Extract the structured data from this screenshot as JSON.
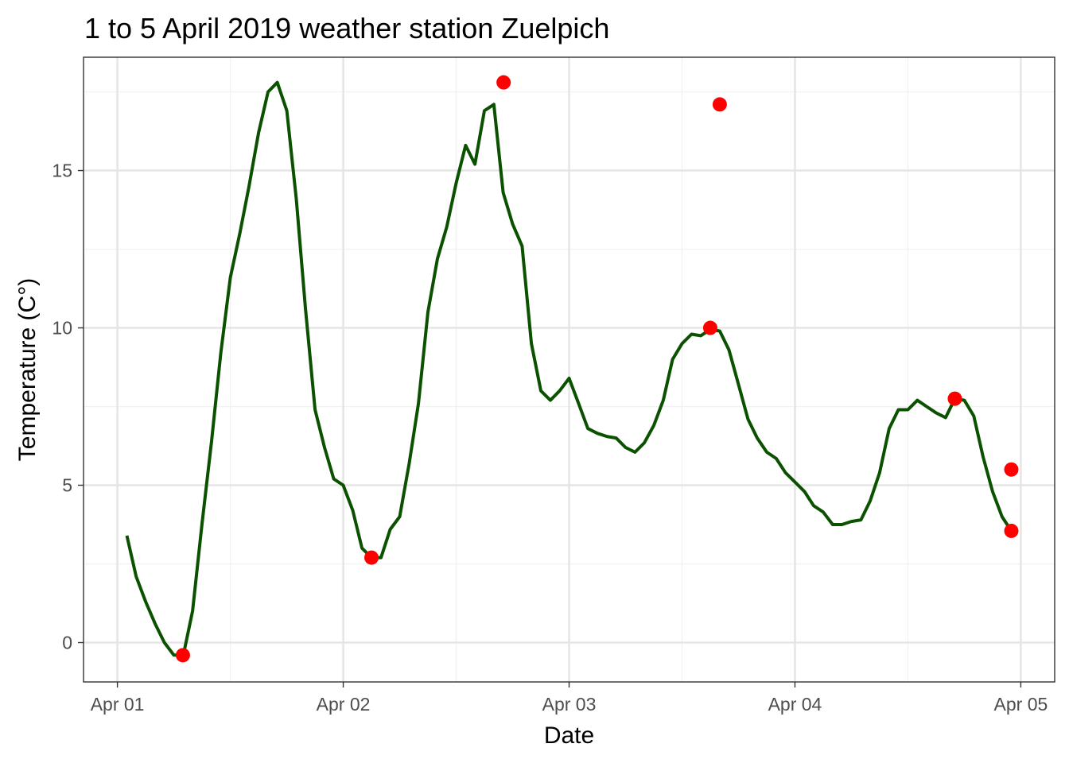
{
  "chart_data": {
    "type": "line",
    "title": "1 to 5 April 2019 weather station Zuelpich",
    "xlabel": "Date",
    "ylabel": "Temperature (C°)",
    "x_ticks": [
      "Apr 01",
      "Apr 02",
      "Apr 03",
      "Apr 04",
      "Apr 05"
    ],
    "y_ticks": [
      "0",
      "5",
      "10",
      "15"
    ],
    "xlim": [
      -0.15,
      4.15
    ],
    "ylim": [
      -1.25,
      18.6
    ],
    "grid": true,
    "colors": {
      "line": "#0b5200",
      "points": "#ff0000",
      "grid_major": "#e5e5e5",
      "grid_minor": "#f2f2f2",
      "border": "#333333"
    },
    "series": [
      {
        "x": [
          0.042,
          0.083,
          0.125,
          0.167,
          0.208,
          0.25,
          0.292,
          0.333,
          0.375,
          0.417,
          0.458,
          0.5,
          0.542,
          0.583,
          0.625,
          0.667,
          0.708,
          0.75,
          0.792,
          0.833,
          0.875,
          0.917,
          0.958,
          1.0,
          1.042,
          1.083,
          1.125,
          1.167,
          1.208,
          1.25,
          1.292,
          1.333,
          1.375,
          1.417,
          1.458,
          1.5,
          1.542,
          1.583,
          1.625,
          1.667,
          1.708,
          1.75,
          1.792,
          1.833,
          1.875,
          1.917,
          1.958,
          2.0,
          2.042,
          2.083,
          2.125,
          2.167,
          2.208,
          2.25,
          2.292,
          2.333,
          2.375,
          2.417,
          2.458,
          2.5,
          2.542,
          2.583,
          2.625,
          2.667,
          2.708,
          2.75,
          2.792,
          2.833,
          2.875,
          2.917,
          2.958,
          3.0,
          3.042,
          3.083,
          3.125,
          3.167,
          3.208,
          3.25,
          3.292,
          3.333,
          3.375,
          3.417,
          3.458,
          3.5,
          3.542,
          3.583,
          3.625,
          3.667,
          3.708,
          3.75,
          3.792,
          3.833,
          3.875,
          3.917,
          3.958
        ],
        "y": [
          3.4,
          2.1,
          1.3,
          0.6,
          0.0,
          -0.4,
          -0.4,
          1.0,
          3.8,
          6.4,
          9.2,
          11.6,
          13.0,
          14.5,
          16.2,
          17.5,
          17.8,
          16.9,
          14.1,
          10.6,
          7.4,
          6.2,
          5.2,
          5.0,
          4.2,
          3.0,
          2.7,
          2.7,
          3.6,
          4.0,
          5.7,
          7.6,
          10.5,
          12.2,
          13.2,
          14.6,
          15.8,
          15.2,
          16.9,
          17.1,
          14.3,
          13.3,
          12.6,
          9.5,
          8.0,
          7.7,
          8.0,
          8.4,
          7.6,
          6.8,
          6.65,
          6.55,
          6.5,
          6.2,
          6.05,
          6.35,
          6.9,
          7.7,
          9.0,
          9.5,
          9.8,
          9.75,
          9.95,
          9.9,
          9.3,
          8.2,
          7.1,
          6.5,
          6.05,
          5.85,
          5.4,
          5.1,
          4.8,
          4.35,
          4.15,
          3.75,
          3.75,
          3.85,
          3.9,
          4.5,
          5.4,
          6.8,
          7.4,
          7.4,
          7.7,
          7.5,
          7.3,
          7.15,
          7.75,
          7.7,
          7.2,
          5.9,
          4.8,
          4.0,
          3.55
        ]
      },
      {
        "x": [
          0.29,
          1.71,
          1.125,
          2.667,
          2.625,
          3.958,
          3.708,
          3.958
        ],
        "y": [
          -0.4,
          17.8,
          2.7,
          17.1,
          10.0,
          5.5,
          7.75,
          3.55
        ]
      }
    ]
  }
}
